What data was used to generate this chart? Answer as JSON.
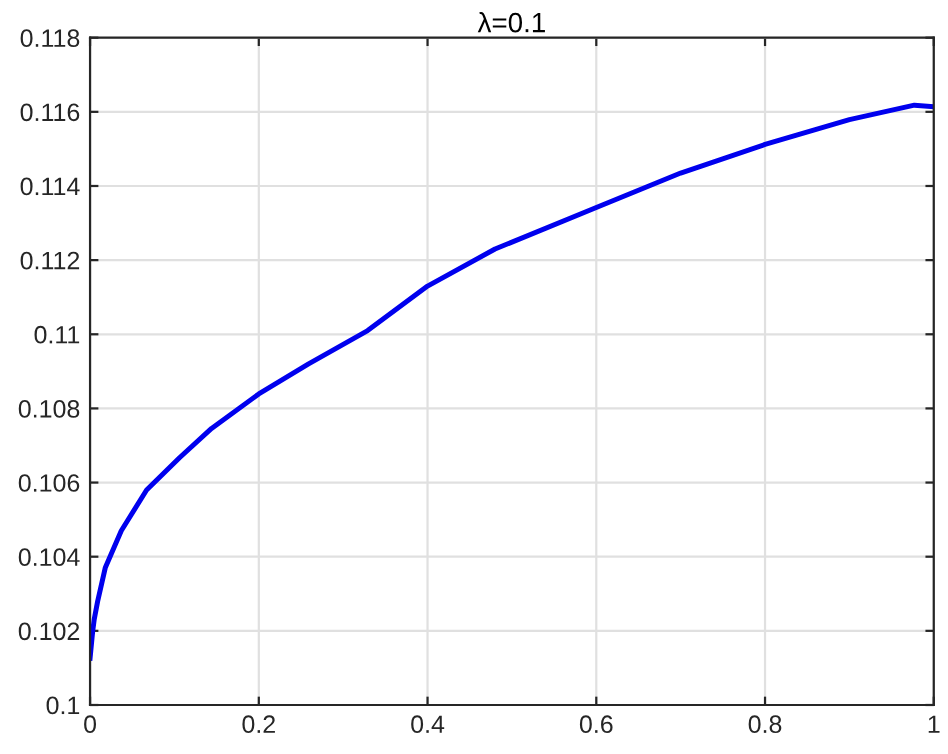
{
  "chart_data": {
    "type": "line",
    "title": "λ=0.1",
    "series": [
      {
        "color": "#0000ee",
        "x": [
          0,
          0.003,
          0.005,
          0.009,
          0.018,
          0.037,
          0.067,
          0.106,
          0.144,
          0.2,
          0.259,
          0.329,
          0.4,
          0.48,
          0.6,
          0.7,
          0.8,
          0.9,
          0.977,
          1.0
        ],
        "values": [
          0.10126,
          0.10197,
          0.10232,
          0.1028,
          0.1037,
          0.1047,
          0.1058,
          0.10667,
          0.10746,
          0.10839,
          0.1092,
          0.1101,
          0.1113,
          0.1123,
          0.11342,
          0.11435,
          0.11512,
          0.11579,
          0.11618,
          0.11614
        ]
      }
    ],
    "xlim": [
      0,
      1
    ],
    "xticks": [
      0,
      0.2,
      0.4,
      0.6,
      0.8,
      1
    ],
    "ylim": [
      0.1,
      0.118
    ],
    "yticks": [
      0.1,
      0.102,
      0.104,
      0.106,
      0.108,
      0.11,
      0.112,
      0.114,
      0.116,
      0.118
    ],
    "grid": true,
    "line_style": "solid",
    "marker": "none"
  }
}
